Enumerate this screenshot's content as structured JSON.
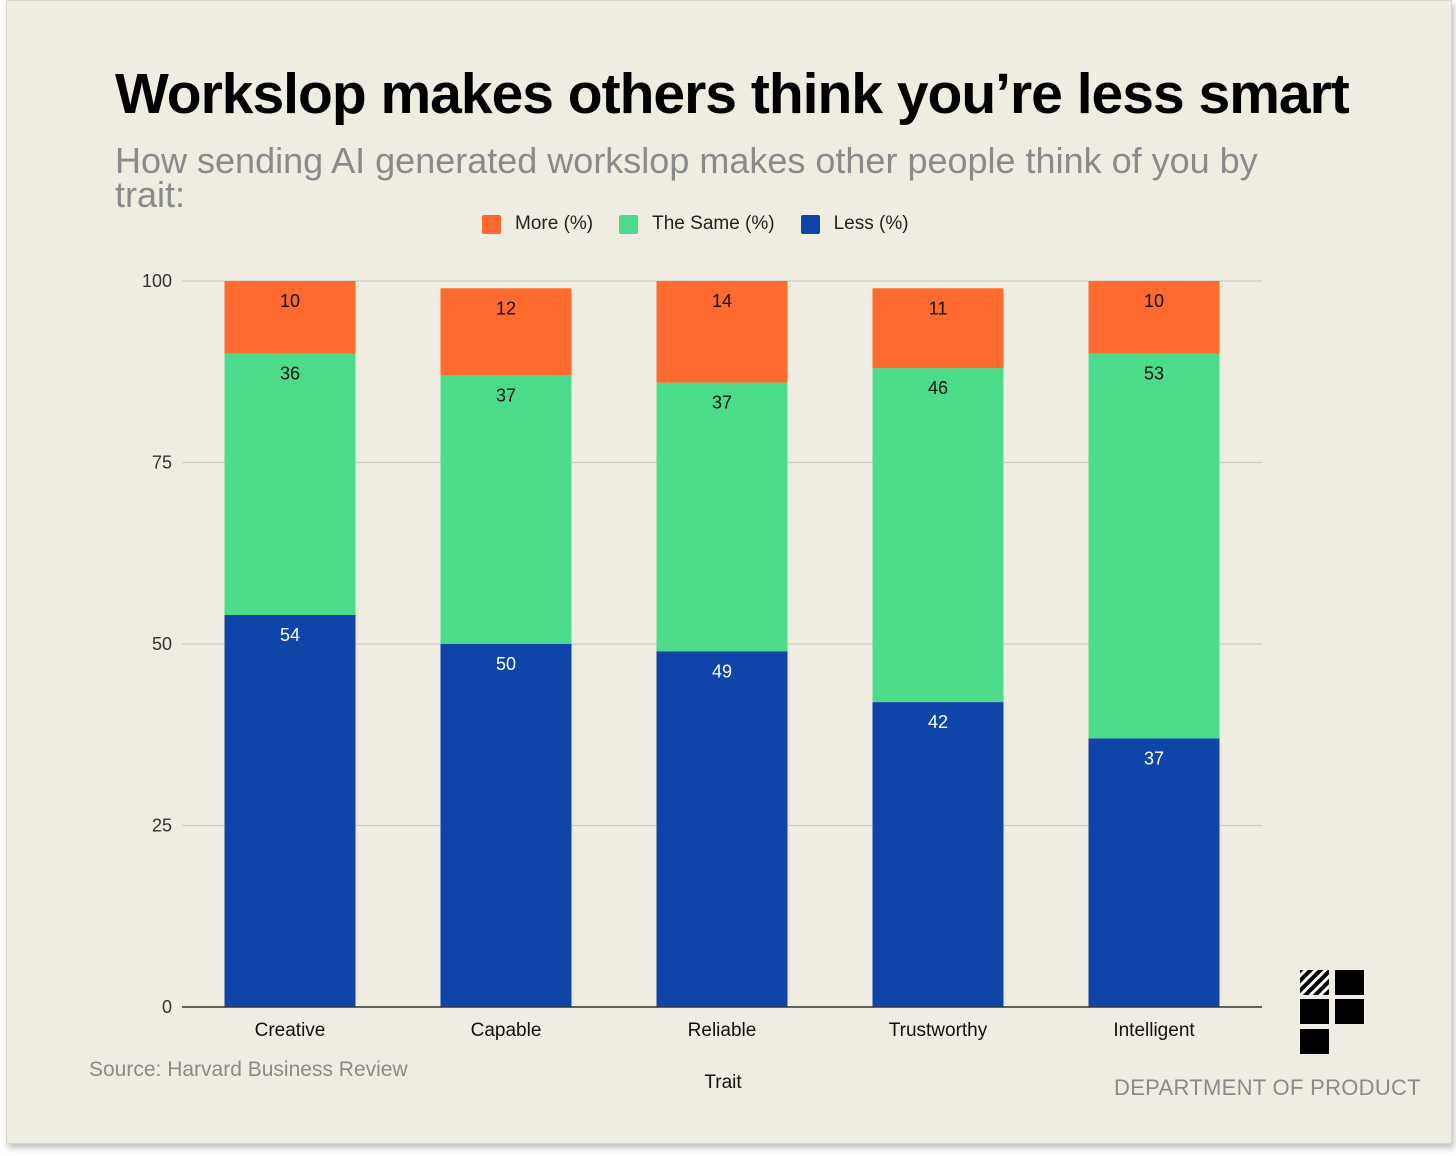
{
  "colors": {
    "more": "#ff6b2e",
    "same": "#4cdb8a",
    "less": "#0f45a8",
    "background": "#efece1",
    "grid": "#cfccc2"
  },
  "chart_data": {
    "type": "bar",
    "stacked": true,
    "title": "Workslop makes others think you’re less smart",
    "subtitle": "How sending AI generated workslop makes other people think of you by trait:",
    "xlabel": "Trait",
    "ylabel": "",
    "ylim": [
      0,
      100
    ],
    "yticks": [
      0,
      25,
      50,
      75,
      100
    ],
    "grid": true,
    "legend_position": "top",
    "categories": [
      "Creative",
      "Capable",
      "Reliable",
      "Trustworthy",
      "Intelligent"
    ],
    "series": [
      {
        "name": "Less (%)",
        "key": "less",
        "values": [
          54,
          50,
          49,
          42,
          37
        ]
      },
      {
        "name": "The Same (%)",
        "key": "same",
        "values": [
          36,
          37,
          37,
          46,
          53
        ]
      },
      {
        "name": "More (%)",
        "key": "more",
        "values": [
          10,
          12,
          14,
          11,
          10
        ]
      }
    ],
    "legend": [
      "More (%)",
      "The Same (%)",
      "Less (%)"
    ]
  },
  "footer": {
    "source": "Source: Harvard Business Review",
    "brand": "DEPARTMENT OF PRODUCT"
  }
}
